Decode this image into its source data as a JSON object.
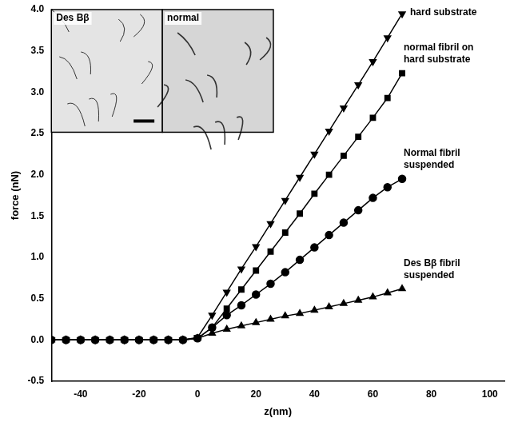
{
  "chart_data": {
    "type": "line",
    "x_label": "z(nm)",
    "y_label": "force (nN)",
    "insets": [
      "Des Bβ",
      "normal"
    ],
    "x": [
      -50,
      -45,
      -40,
      -35,
      -30,
      -25,
      -20,
      -15,
      -10,
      -5,
      0,
      5,
      10,
      15,
      20,
      25,
      30,
      35,
      40,
      45,
      50,
      55,
      60,
      65,
      70
    ],
    "series": [
      {
        "name": "hard substrate",
        "color": "#000000",
        "marker": "triangle_down",
        "line_style": "solid",
        "values": [
          0,
          0,
          0,
          0,
          0,
          0,
          0,
          0,
          0,
          0,
          0.03,
          0.3,
          0.58,
          0.86,
          1.13,
          1.41,
          1.69,
          1.97,
          2.25,
          2.53,
          2.81,
          3.09,
          3.37,
          3.66,
          3.95
        ]
      },
      {
        "name": "normal fibril on hard substrate",
        "color": "#000000",
        "marker": "square",
        "line_style": "solid",
        "values": [
          0,
          0,
          0,
          0,
          0,
          0,
          0,
          0,
          0,
          0,
          0.02,
          0.15,
          0.38,
          0.61,
          0.84,
          1.07,
          1.3,
          1.53,
          1.77,
          2.0,
          2.23,
          2.46,
          2.69,
          2.93,
          3.23
        ]
      },
      {
        "name": "Normal fibril suspended",
        "color": "#000000",
        "marker": "circle",
        "line_style": "solid",
        "values": [
          0,
          0,
          0,
          0,
          0,
          0,
          0,
          0,
          0,
          0,
          0.02,
          0.15,
          0.3,
          0.42,
          0.55,
          0.68,
          0.82,
          0.97,
          1.12,
          1.27,
          1.42,
          1.57,
          1.72,
          1.85,
          1.95
        ]
      },
      {
        "name": "Des Bβ fibril suspended",
        "color": "#000000",
        "marker": "triangle",
        "line_style": "solid",
        "values": [
          0,
          0,
          0,
          0,
          0,
          0,
          0,
          0,
          0,
          0,
          0.02,
          0.08,
          0.13,
          0.17,
          0.21,
          0.25,
          0.29,
          0.32,
          0.36,
          0.4,
          0.44,
          0.48,
          0.52,
          0.57,
          0.62
        ]
      }
    ],
    "xlim": [
      -50,
      105
    ],
    "xticks": [
      -40,
      -20,
      0,
      20,
      40,
      60,
      80,
      100
    ],
    "ylim": [
      -0.5,
      4.0
    ],
    "yticks": [
      {
        "value": -0.5,
        "label": "-0.5"
      },
      {
        "value": 0,
        "label": "0.0"
      },
      {
        "value": 0.5,
        "label": "0.5"
      },
      {
        "value": 1.0,
        "label": "1.0"
      },
      {
        "value": 1.5,
        "label": "1.5"
      },
      {
        "value": 2.0,
        "label": "2.0"
      },
      {
        "value": 2.5,
        "label": "2.5"
      },
      {
        "value": 3.0,
        "label": "3.0"
      },
      {
        "value": 3.5,
        "label": "3.5"
      },
      {
        "value": 4.0,
        "label": "4.0"
      }
    ],
    "grid": false
  }
}
